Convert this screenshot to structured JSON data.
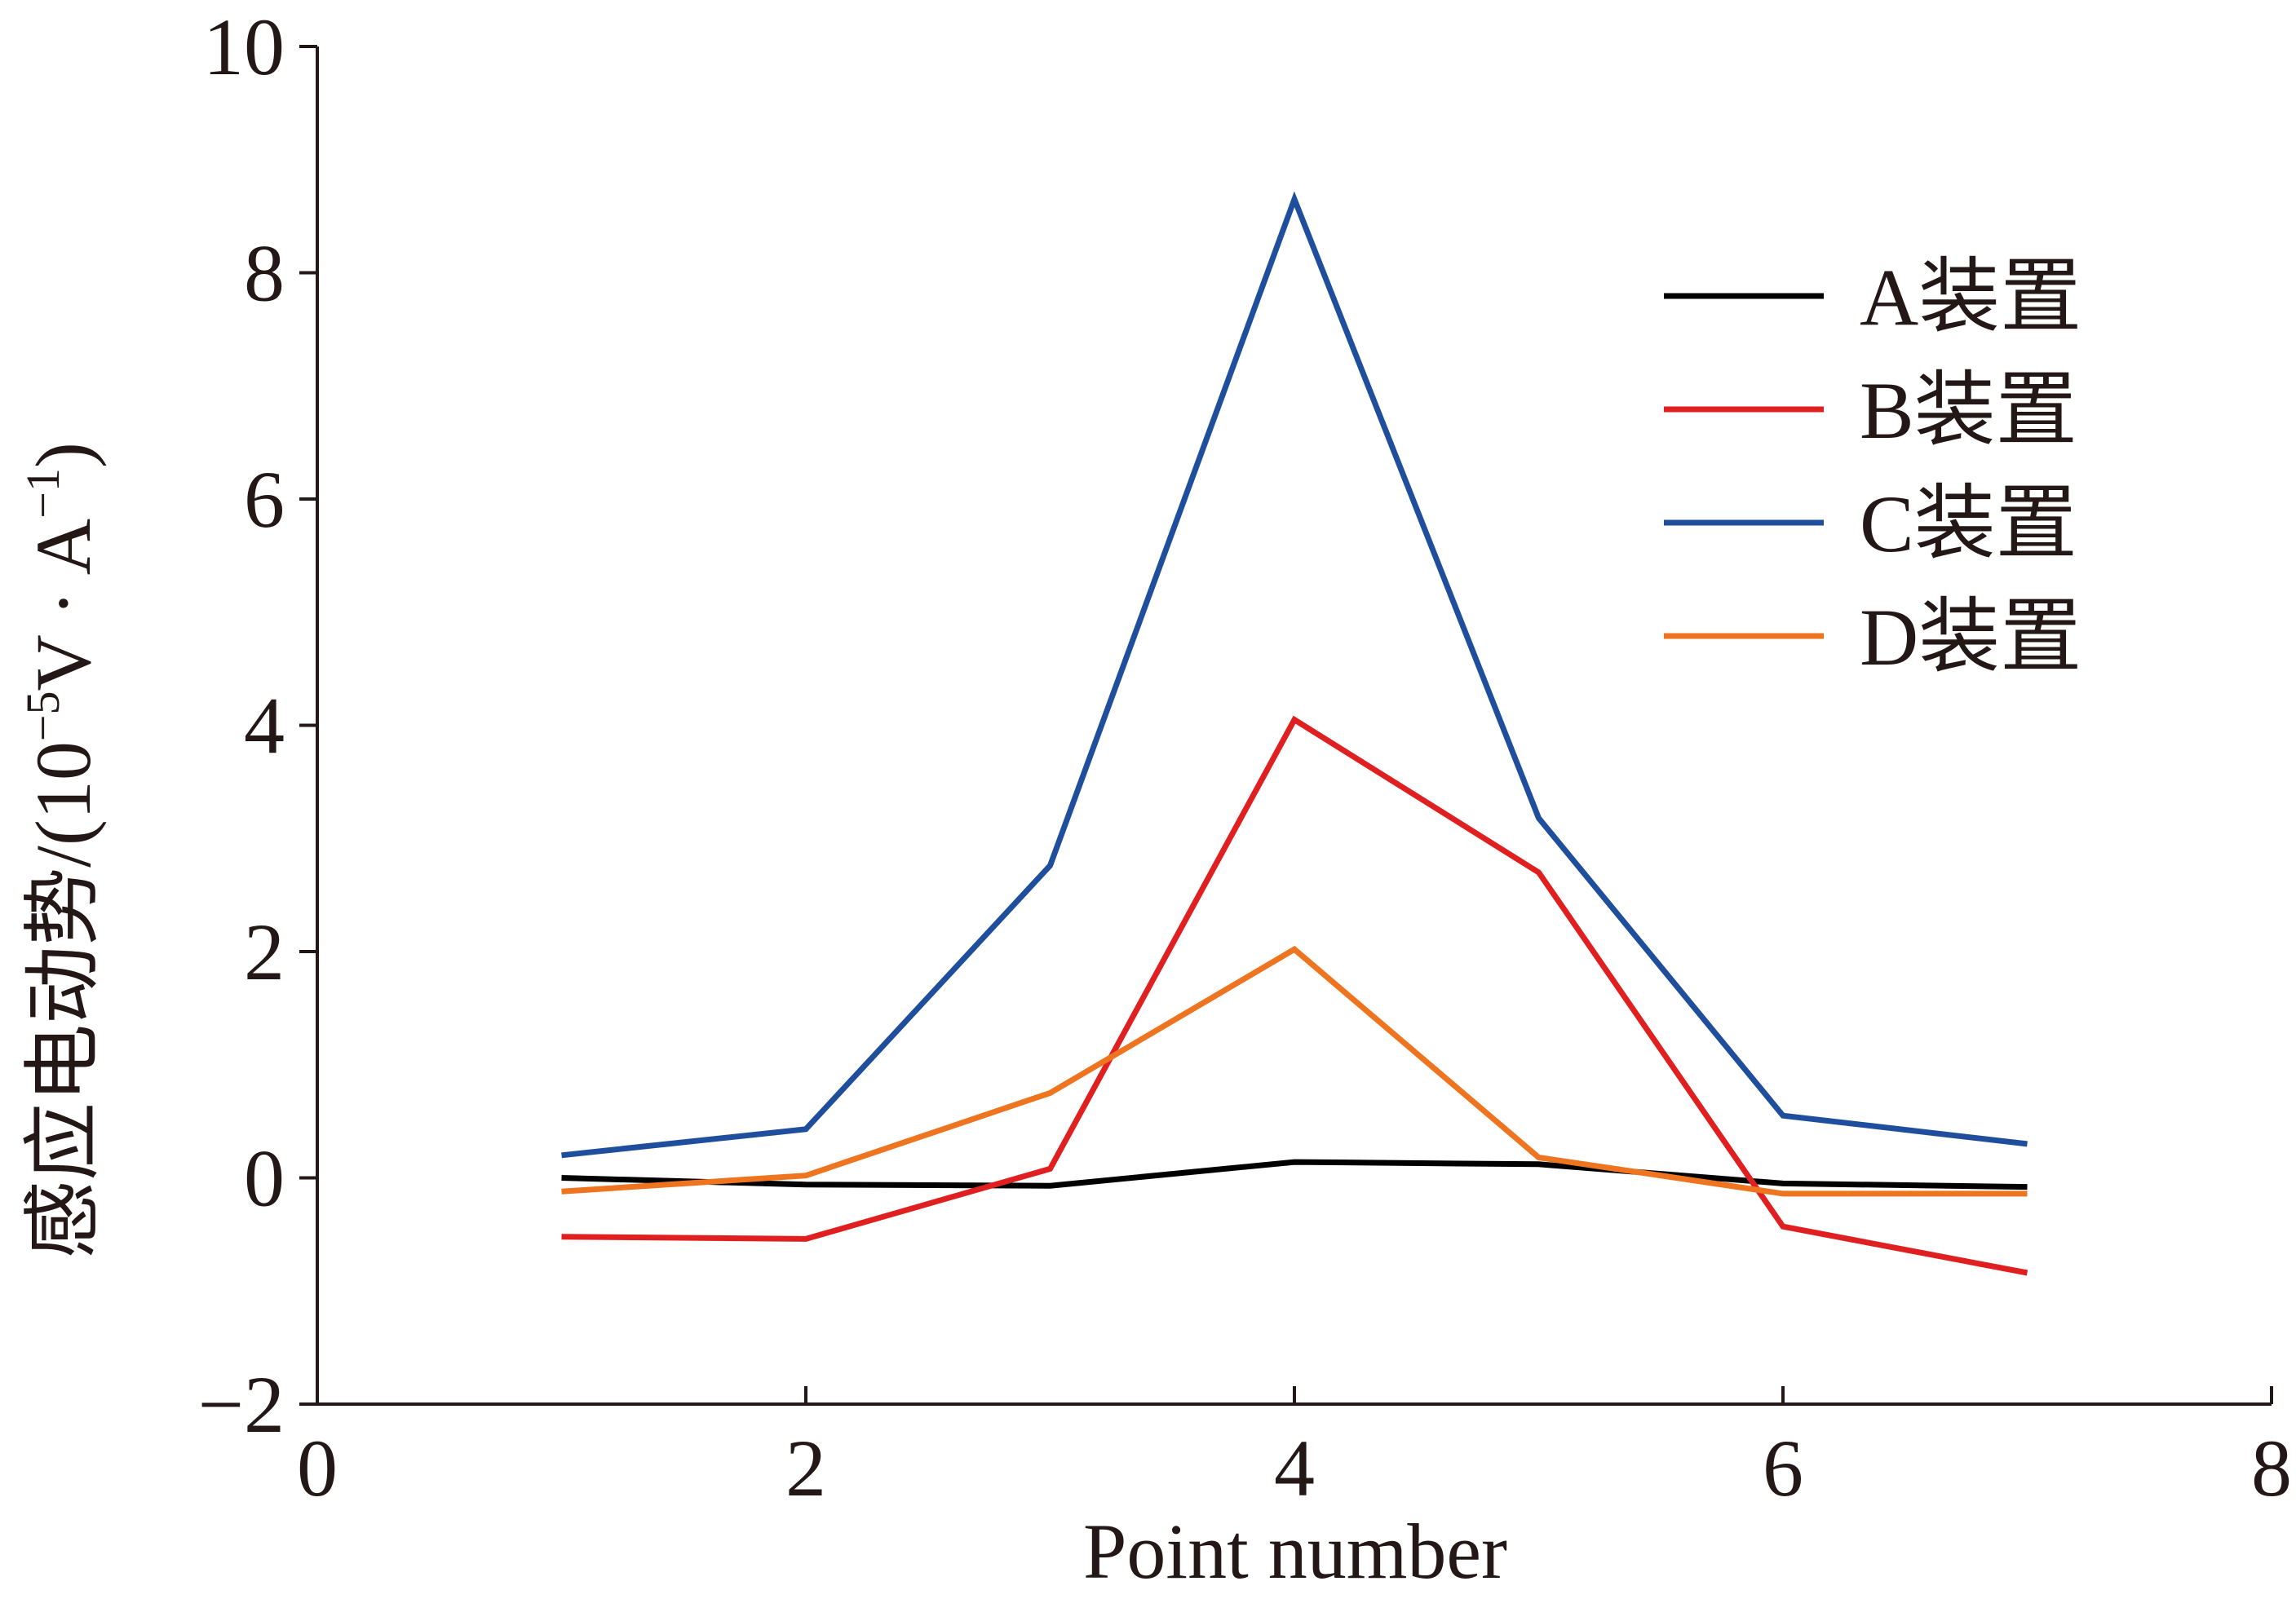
{
  "chart_data": {
    "type": "line",
    "xlabel": "Point number",
    "ylabel": "感应电动势/(10",
    "ylabel_sup1": "−5",
    "ylabel_mid": "V · A",
    "ylabel_sup2": "−1",
    "ylabel_end": ")",
    "xlim": [
      0,
      8
    ],
    "ylim": [
      -2,
      10
    ],
    "xticks": [
      0,
      2,
      4,
      6,
      8
    ],
    "yticks": [
      -2,
      0,
      2,
      4,
      6,
      8,
      10
    ],
    "xtick_labels": [
      "0",
      "2",
      "4",
      "6",
      "8"
    ],
    "ytick_labels": [
      "−2",
      "0",
      "2",
      "4",
      "6",
      "8",
      "10"
    ],
    "grid": false,
    "legend_position": "top-right",
    "x": [
      1,
      2,
      3,
      4,
      5,
      6,
      7
    ],
    "series": [
      {
        "name": "A装置",
        "color": "#000000",
        "values": [
          0.0,
          -0.06,
          -0.07,
          0.14,
          0.12,
          -0.05,
          -0.08
        ]
      },
      {
        "name": "B装置",
        "color": "#e02020",
        "values": [
          -0.52,
          -0.54,
          0.08,
          4.05,
          2.7,
          -0.43,
          -0.84
        ]
      },
      {
        "name": "C装置",
        "color": "#1f4e9c",
        "values": [
          0.2,
          0.43,
          2.76,
          8.65,
          3.18,
          0.55,
          0.3
        ]
      },
      {
        "name": "D装置",
        "color": "#ee7420",
        "values": [
          -0.12,
          0.02,
          0.75,
          2.02,
          0.18,
          -0.14,
          -0.14
        ]
      }
    ]
  }
}
